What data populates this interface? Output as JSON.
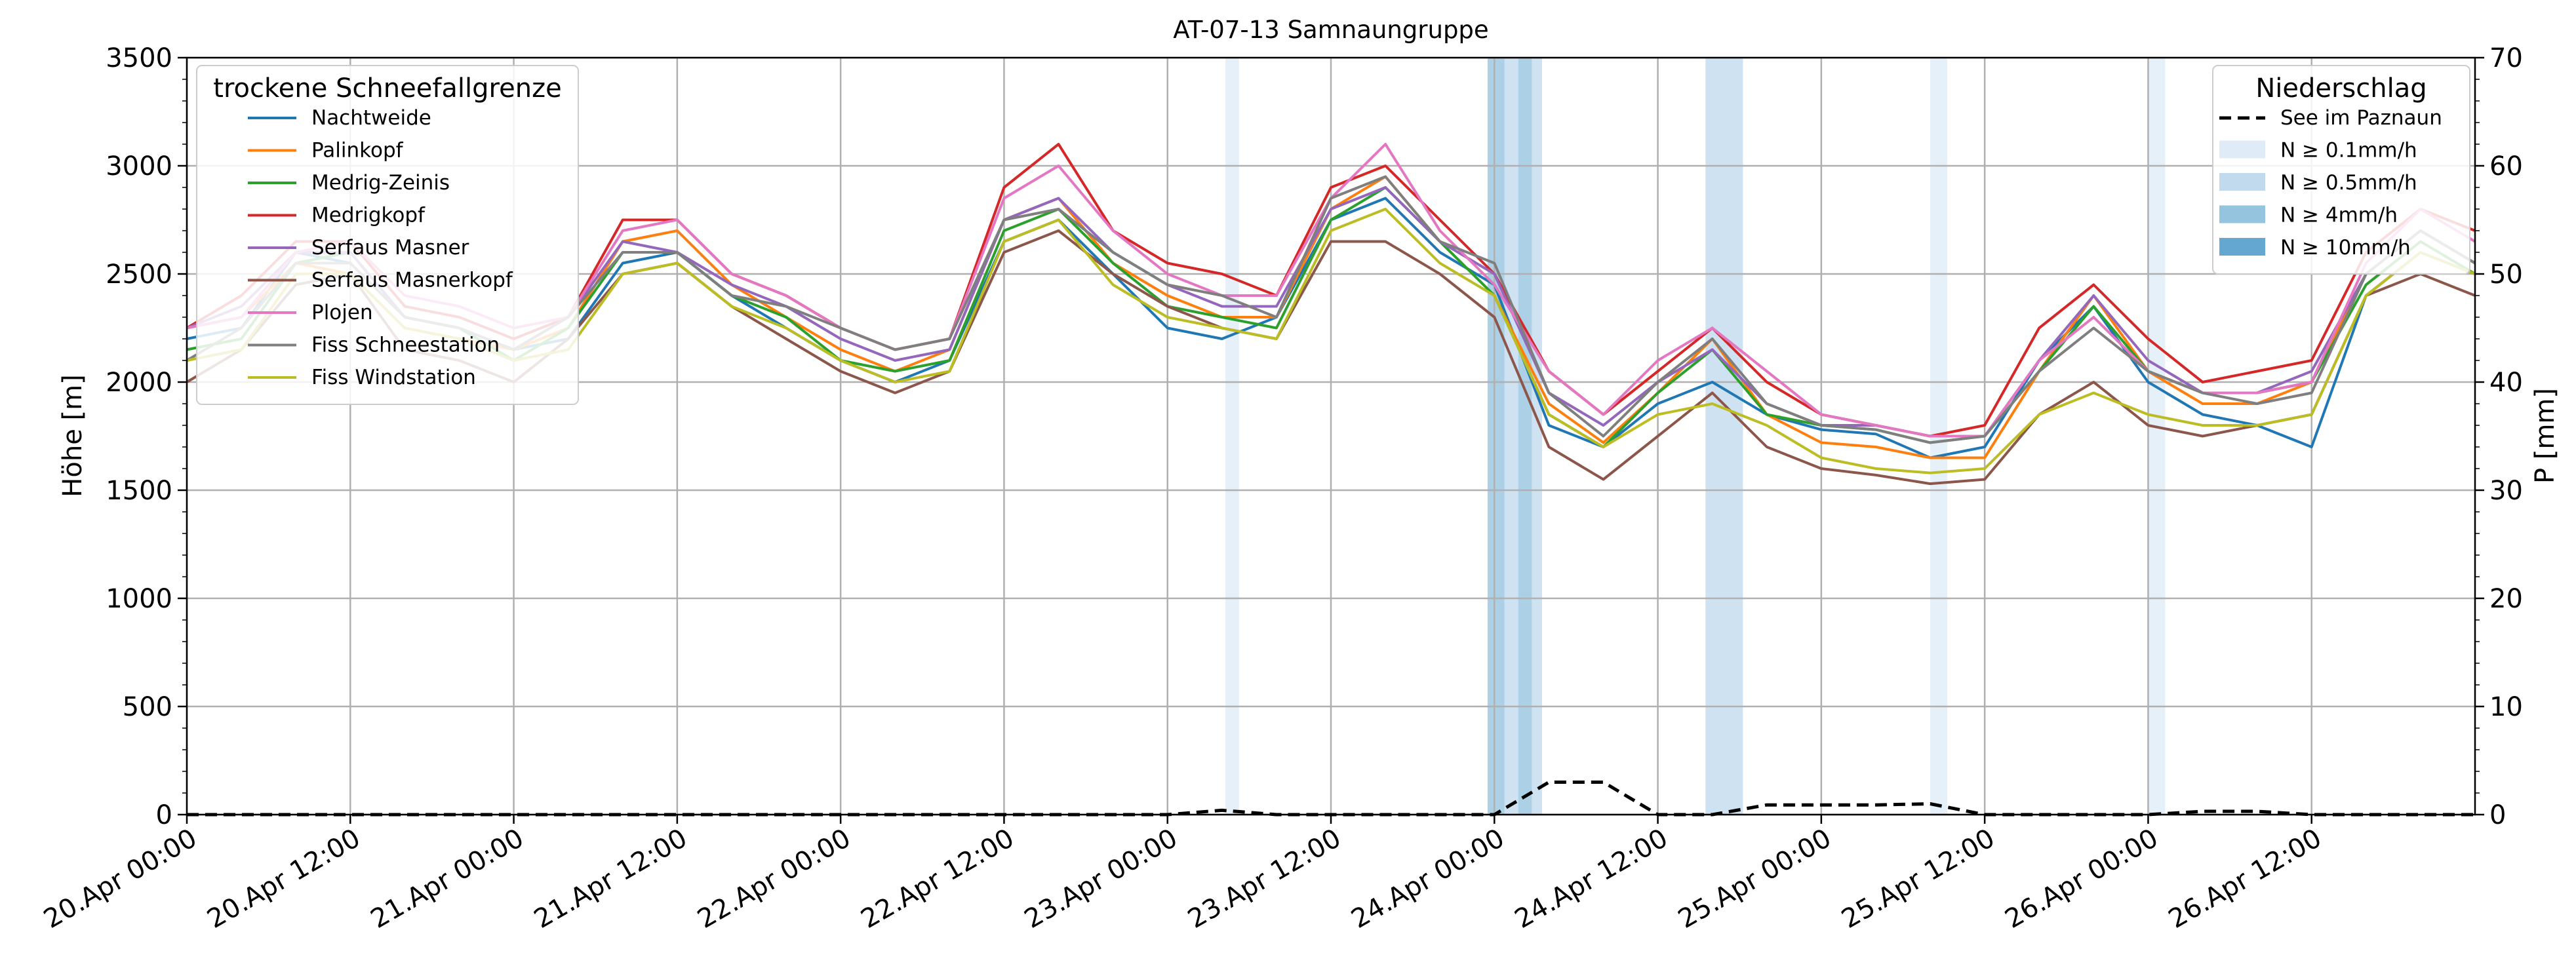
{
  "chart_data": {
    "type": "line",
    "title": "AT-07-13 Samnaungruppe",
    "ylabel": "Höhe [m]",
    "y2label": "P [mm]",
    "ylim": [
      0,
      3500
    ],
    "y2lim": [
      0,
      70
    ],
    "xlim": [
      "2026-04-20T00:00",
      "2026-04-27T00:00"
    ],
    "grid": true,
    "yticks": [
      "0",
      "500",
      "1000",
      "1500",
      "2000",
      "2500",
      "3000",
      "3500"
    ],
    "y2ticks": [
      "0",
      "10",
      "20",
      "30",
      "40",
      "50",
      "60",
      "70"
    ],
    "xticks": [
      {
        "t": "2026-04-20T00:00",
        "label": "20.Apr 00:00"
      },
      {
        "t": "2026-04-20T12:00",
        "label": "20.Apr 12:00"
      },
      {
        "t": "2026-04-21T00:00",
        "label": "21.Apr 00:00"
      },
      {
        "t": "2026-04-21T12:00",
        "label": "21.Apr 12:00"
      },
      {
        "t": "2026-04-22T00:00",
        "label": "22.Apr 00:00"
      },
      {
        "t": "2026-04-22T12:00",
        "label": "22.Apr 12:00"
      },
      {
        "t": "2026-04-23T00:00",
        "label": "23.Apr 00:00"
      },
      {
        "t": "2026-04-23T12:00",
        "label": "23.Apr 12:00"
      },
      {
        "t": "2026-04-24T00:00",
        "label": "24.Apr 00:00"
      },
      {
        "t": "2026-04-24T12:00",
        "label": "24.Apr 12:00"
      },
      {
        "t": "2026-04-25T00:00",
        "label": "25.Apr 00:00"
      },
      {
        "t": "2026-04-25T12:00",
        "label": "25.Apr 12:00"
      },
      {
        "t": "2026-04-26T00:00",
        "label": "26.Apr 00:00"
      },
      {
        "t": "2026-04-26T12:00",
        "label": "26.Apr 12:00"
      }
    ],
    "legend_left": {
      "title": "trockene Schneefallgrenze",
      "placement": "upper-left"
    },
    "legend_right": {
      "title": "Niederschlag",
      "placement": "upper-right",
      "entries": [
        {
          "label": "See im Paznaun",
          "kind": "dashed-line",
          "color": "#000000"
        },
        {
          "label": "N ≥ 0.1mm/h",
          "kind": "patch",
          "color": "#dbe9f6"
        },
        {
          "label": "N ≥ 0.5mm/h",
          "kind": "patch",
          "color": "#bad6eb"
        },
        {
          "label": "N ≥ 4mm/h",
          "kind": "patch",
          "color": "#89bedc"
        },
        {
          "label": "N ≥ 10mm/h",
          "kind": "patch",
          "color": "#539ecd"
        }
      ]
    },
    "x": [
      "2026-04-20T00:00",
      "2026-04-20T04:00",
      "2026-04-20T08:00",
      "2026-04-20T12:00",
      "2026-04-20T16:00",
      "2026-04-20T20:00",
      "2026-04-21T00:00",
      "2026-04-21T04:00",
      "2026-04-21T08:00",
      "2026-04-21T12:00",
      "2026-04-21T16:00",
      "2026-04-21T20:00",
      "2026-04-22T00:00",
      "2026-04-22T04:00",
      "2026-04-22T08:00",
      "2026-04-22T12:00",
      "2026-04-22T16:00",
      "2026-04-22T20:00",
      "2026-04-23T00:00",
      "2026-04-23T04:00",
      "2026-04-23T08:00",
      "2026-04-23T12:00",
      "2026-04-23T16:00",
      "2026-04-23T20:00",
      "2026-04-24T00:00",
      "2026-04-24T04:00",
      "2026-04-24T08:00",
      "2026-04-24T12:00",
      "2026-04-24T16:00",
      "2026-04-24T20:00",
      "2026-04-25T00:00",
      "2026-04-25T04:00",
      "2026-04-25T08:00",
      "2026-04-25T12:00",
      "2026-04-25T16:00",
      "2026-04-25T20:00",
      "2026-04-26T00:00",
      "2026-04-26T04:00",
      "2026-04-26T08:00",
      "2026-04-26T12:00",
      "2026-04-26T16:00",
      "2026-04-26T20:00",
      "2026-04-27T00:00"
    ],
    "series": [
      {
        "name": "Nachtweide",
        "color": "#1f77b4",
        "axis": "left",
        "values": [
          2200,
          2250,
          2600,
          2550,
          2300,
          2250,
          2150,
          2200,
          2550,
          2600,
          2400,
          2250,
          2100,
          2000,
          2100,
          2650,
          2750,
          2500,
          2250,
          2200,
          2300,
          2750,
          2850,
          2600,
          2450,
          1800,
          1700,
          1900,
          2000,
          1850,
          1780,
          1760,
          1650,
          1700,
          2100,
          2350,
          2000,
          1850,
          1800,
          1700,
          2400,
          2600,
          2500
        ]
      },
      {
        "name": "Palinkopf",
        "color": "#ff7f0e",
        "axis": "left",
        "values": [
          2250,
          2300,
          2550,
          2500,
          2250,
          2200,
          2150,
          2250,
          2650,
          2700,
          2450,
          2300,
          2150,
          2050,
          2150,
          2750,
          2850,
          2550,
          2400,
          2300,
          2300,
          2800,
          2950,
          2650,
          2400,
          1900,
          1720,
          1950,
          2200,
          1850,
          1720,
          1700,
          1650,
          1650,
          2050,
          2400,
          2050,
          1900,
          1900,
          2000,
          2500,
          2700,
          2550
        ]
      },
      {
        "name": "Medrig-Zeinis",
        "color": "#2ca02c",
        "axis": "left",
        "values": [
          2150,
          2200,
          2550,
          2600,
          2300,
          2250,
          2100,
          2250,
          2600,
          2600,
          2400,
          2300,
          2100,
          2050,
          2100,
          2700,
          2800,
          2550,
          2350,
          2300,
          2250,
          2750,
          2900,
          2650,
          2400,
          1850,
          1700,
          1950,
          2150,
          1850,
          1800,
          1780,
          1720,
          1750,
          2050,
          2350,
          2050,
          1950,
          1950,
          2000,
          2450,
          2650,
          2500
        ]
      },
      {
        "name": "Medrigkopf",
        "color": "#d62728",
        "axis": "left",
        "values": [
          2250,
          2400,
          2650,
          2650,
          2350,
          2300,
          2200,
          2300,
          2750,
          2750,
          2500,
          2400,
          2250,
          2150,
          2200,
          2900,
          3100,
          2700,
          2550,
          2500,
          2400,
          2900,
          3000,
          2750,
          2500,
          2050,
          1850,
          2050,
          2250,
          2000,
          1850,
          1800,
          1750,
          1800,
          2250,
          2450,
          2200,
          2000,
          2050,
          2100,
          2600,
          2800,
          2700
        ]
      },
      {
        "name": "Serfaus Masner",
        "color": "#9467bd",
        "axis": "left",
        "values": [
          2250,
          2350,
          2600,
          2600,
          2300,
          2250,
          2150,
          2300,
          2650,
          2600,
          2450,
          2350,
          2200,
          2100,
          2150,
          2750,
          2850,
          2600,
          2450,
          2350,
          2350,
          2800,
          2900,
          2650,
          2500,
          1950,
          1800,
          2000,
          2150,
          1900,
          1800,
          1800,
          1750,
          1750,
          2100,
          2400,
          2100,
          1950,
          1950,
          2050,
          2500,
          2700,
          2550
        ]
      },
      {
        "name": "Serfaus Masnerkopf",
        "color": "#8c564b",
        "axis": "left",
        "values": [
          2000,
          2150,
          2450,
          2500,
          2150,
          2100,
          2000,
          2200,
          2500,
          2550,
          2350,
          2200,
          2050,
          1950,
          2050,
          2600,
          2700,
          2500,
          2350,
          2250,
          2200,
          2650,
          2650,
          2500,
          2300,
          1700,
          1550,
          1750,
          1950,
          1700,
          1600,
          1570,
          1530,
          1550,
          1850,
          2000,
          1800,
          1750,
          1800,
          1850,
          2400,
          2500,
          2400
        ]
      },
      {
        "name": "Plojen",
        "color": "#e377c2",
        "axis": "left",
        "values": [
          2250,
          2300,
          2600,
          2650,
          2400,
          2350,
          2250,
          2300,
          2700,
          2750,
          2500,
          2400,
          2250,
          2150,
          2200,
          2850,
          3000,
          2700,
          2500,
          2400,
          2400,
          2850,
          3100,
          2700,
          2450,
          2050,
          1850,
          2100,
          2250,
          2050,
          1850,
          1800,
          1750,
          1750,
          2100,
          2300,
          2050,
          1950,
          1950,
          2000,
          2550,
          2800,
          2650
        ]
      },
      {
        "name": "Fiss Schneestation",
        "color": "#7f7f7f",
        "axis": "left",
        "values": [
          2100,
          2250,
          2550,
          2550,
          2300,
          2250,
          2150,
          2300,
          2600,
          2600,
          2400,
          2350,
          2250,
          2150,
          2200,
          2750,
          2800,
          2600,
          2450,
          2400,
          2300,
          2850,
          2950,
          2650,
          2550,
          1950,
          1750,
          2000,
          2200,
          1900,
          1800,
          1780,
          1720,
          1750,
          2050,
          2250,
          2050,
          1950,
          1900,
          1950,
          2500,
          2700,
          2550
        ]
      },
      {
        "name": "Fiss Windstation",
        "color": "#bcbd22",
        "axis": "left",
        "values": [
          2100,
          2150,
          2500,
          2500,
          2250,
          2200,
          2100,
          2150,
          2500,
          2550,
          2350,
          2250,
          2100,
          2000,
          2050,
          2650,
          2750,
          2450,
          2300,
          2250,
          2200,
          2700,
          2800,
          2550,
          2400,
          1850,
          1700,
          1850,
          1900,
          1800,
          1650,
          1600,
          1580,
          1600,
          1850,
          1950,
          1850,
          1800,
          1800,
          1850,
          2400,
          2600,
          2500
        ]
      },
      {
        "name": "See im Paznaun",
        "color": "#000000",
        "dash": true,
        "axis": "right",
        "values": [
          0,
          0,
          0,
          0,
          0,
          0,
          0,
          0,
          0,
          0,
          0,
          0,
          0,
          0,
          0,
          0,
          0,
          0,
          0,
          0.4,
          0,
          0,
          0,
          0,
          0,
          3,
          3,
          0,
          0,
          0.9,
          0.9,
          0.9,
          1,
          0,
          0,
          0,
          0,
          0.3,
          0.3,
          0,
          0,
          0,
          0
        ]
      }
    ],
    "precip_bands": [
      {
        "start": "2026-04-23T04:15",
        "end": "2026-04-23T05:15",
        "level": 0
      },
      {
        "start": "2026-04-23T23:30",
        "end": "2026-04-24T00:45",
        "level": 2
      },
      {
        "start": "2026-04-24T00:45",
        "end": "2026-04-24T01:45",
        "level": 1
      },
      {
        "start": "2026-04-24T01:45",
        "end": "2026-04-24T02:45",
        "level": 2
      },
      {
        "start": "2026-04-24T02:45",
        "end": "2026-04-24T03:30",
        "level": 1
      },
      {
        "start": "2026-04-24T15:30",
        "end": "2026-04-24T18:15",
        "level": 1
      },
      {
        "start": "2026-04-25T08:00",
        "end": "2026-04-25T09:15",
        "level": 0
      },
      {
        "start": "2026-04-26T00:00",
        "end": "2026-04-26T01:15",
        "level": 0
      }
    ]
  }
}
